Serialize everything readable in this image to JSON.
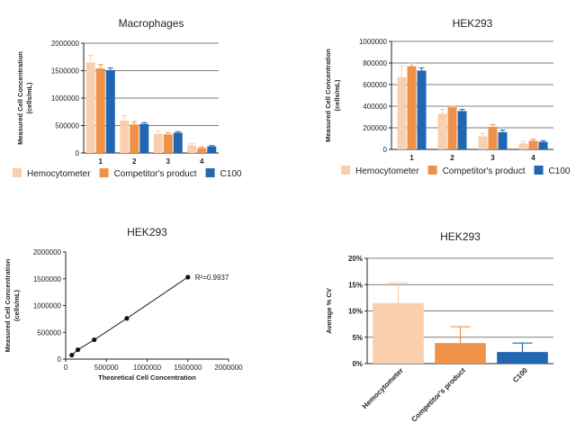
{
  "chart_data": [
    {
      "type": "bar",
      "title": "Macrophages",
      "ylabel": "Measured Cell Concentration\n(cells/mL)",
      "categories": [
        "1",
        "2",
        "3",
        "4"
      ],
      "ylim": [
        0,
        2000000
      ],
      "yticks": [
        "0",
        "500000",
        "1000000",
        "1500000",
        "2000000"
      ],
      "grid": true,
      "legend": "bottom",
      "series": [
        {
          "name": "Hemocytometer",
          "color": "#f9cfae",
          "values": [
            1650000,
            590000,
            350000,
            140000
          ],
          "errors": [
            130000,
            90000,
            50000,
            30000
          ]
        },
        {
          "name": "Competitor's product",
          "color": "#f0914a",
          "values": [
            1540000,
            520000,
            340000,
            90000
          ],
          "errors": [
            70000,
            50000,
            30000,
            20000
          ]
        },
        {
          "name": "C100",
          "color": "#2166b1",
          "values": [
            1510000,
            530000,
            370000,
            120000
          ],
          "errors": [
            40000,
            25000,
            20000,
            15000
          ]
        }
      ]
    },
    {
      "type": "bar",
      "title": "HEK293",
      "ylabel": "Measured Cell Concentration\n(cells/mL)",
      "categories": [
        "1",
        "2",
        "3",
        "4"
      ],
      "ylim": [
        0,
        1000000
      ],
      "yticks": [
        "0",
        "200000",
        "400000",
        "600000",
        "800000",
        "1000000"
      ],
      "grid": true,
      "legend": "bottom",
      "series": [
        {
          "name": "Hemocytometer",
          "color": "#f9cfae",
          "values": [
            670000,
            330000,
            120000,
            55000
          ],
          "errors": [
            100000,
            40000,
            30000,
            20000
          ]
        },
        {
          "name": "Competitor's product",
          "color": "#f0914a",
          "values": [
            770000,
            390000,
            210000,
            80000
          ],
          "errors": [
            30000,
            10000,
            20000,
            15000
          ]
        },
        {
          "name": "C100",
          "color": "#2166b1",
          "values": [
            730000,
            355000,
            160000,
            70000
          ],
          "errors": [
            25000,
            15000,
            20000,
            10000
          ]
        }
      ]
    },
    {
      "type": "scatter",
      "title": "HEK293",
      "xlabel": "Theoretical Cell Concentration",
      "ylabel": "Measured Cell Concentration\n(cells/mL)",
      "xlim": [
        0,
        2000000
      ],
      "ylim": [
        0,
        2000000
      ],
      "xticks": [
        "0",
        "500000",
        "1000000",
        "1500000",
        "2000000"
      ],
      "yticks": [
        "0",
        "500000",
        "1000000",
        "1500000",
        "2000000"
      ],
      "annotation": "R²=0.9937",
      "grid": false,
      "series": [
        {
          "x": [
            75000,
            150000,
            350000,
            750000,
            1500000
          ],
          "y": [
            75000,
            175000,
            360000,
            760000,
            1530000
          ]
        }
      ]
    },
    {
      "type": "bar",
      "title": "HEK293",
      "ylabel": "Average % CV",
      "categories": [
        "Hemocytometer",
        "Competitor's product",
        "C100"
      ],
      "ylim": [
        0,
        20
      ],
      "yticks": [
        "0%",
        "5%",
        "10%",
        "15%",
        "20%"
      ],
      "grid": true,
      "values": [
        11.5,
        3.9,
        2.2
      ],
      "errors": [
        3.8,
        3.1,
        1.7
      ],
      "colors": [
        "#f9cfae",
        "#f0914a",
        "#2166b1"
      ]
    }
  ]
}
